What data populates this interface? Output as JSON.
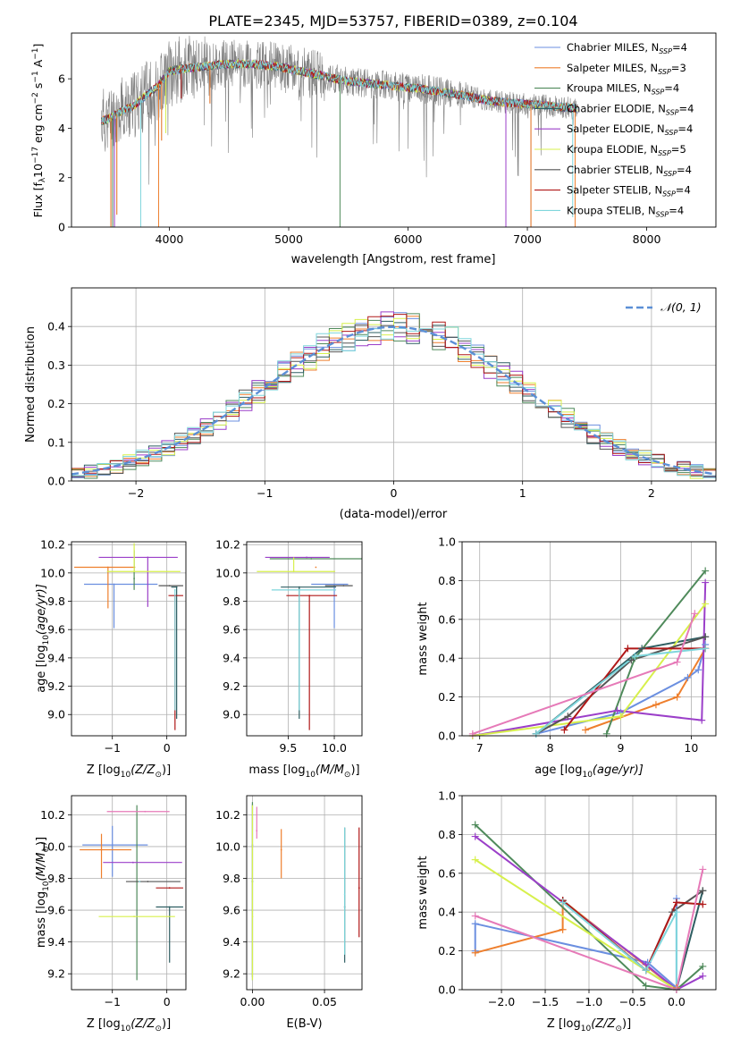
{
  "figure": {
    "title": "PLATE=2345, MJD=53757, FIBERID=0389, z=0.104"
  },
  "colors": {
    "spectrum": "#808080",
    "gaussian": "#5b8fd6",
    "grid": "#b0b0b0"
  },
  "models": [
    {
      "name": "Chabrier MILES",
      "nssp": "4",
      "color": "#6b8fe0"
    },
    {
      "name": "Salpeter MILES",
      "nssp": "3",
      "color": "#ee7f2d"
    },
    {
      "name": "Kroupa MILES",
      "nssp": "4",
      "color": "#4f8a5b"
    },
    {
      "name": "Chabrier ELODIE",
      "nssp": "4",
      "color": "#2e5e62"
    },
    {
      "name": "Salpeter ELODIE",
      "nssp": "4",
      "color": "#9b3fc9"
    },
    {
      "name": "Kroupa ELODIE",
      "nssp": "5",
      "color": "#d7f04c"
    },
    {
      "name": "Chabrier STELIB",
      "nssp": "4",
      "color": "#555555"
    },
    {
      "name": "Salpeter STELIB",
      "nssp": "4",
      "color": "#b01818"
    },
    {
      "name": "Kroupa STELIB",
      "nssp": "4",
      "color": "#7fd6dc"
    }
  ],
  "chart_data": [
    {
      "id": "spectrum",
      "type": "line",
      "xlabel": "wavelength [Angstrom, rest frame]",
      "ylabel_main": "Flux [f",
      "ylabel_sub": "λ",
      "ylabel_mid": "10",
      "ylabel_sup1": "−17",
      "ylabel_mid2": " erg cm",
      "ylabel_sup2": "−2",
      "ylabel_mid3": " s",
      "ylabel_sup3": "−1",
      "ylabel_mid4": " A",
      "ylabel_sup4": "−1",
      "ylabel_end": "]",
      "xlim": [
        3180,
        8580
      ],
      "ylim": [
        0,
        7.85
      ],
      "xticks": [
        4000,
        5000,
        6000,
        7000,
        8000
      ],
      "yticks": [
        0,
        2,
        4,
        6
      ],
      "legend_position": "upper right",
      "legend_nssp_label": "N",
      "legend_nssp_sub": "SSP",
      "continuum": [
        [
          3430,
          4.3
        ],
        [
          3500,
          4.4
        ],
        [
          3600,
          4.7
        ],
        [
          3700,
          4.9
        ],
        [
          3800,
          5.3
        ],
        [
          3900,
          5.7
        ],
        [
          4000,
          6.3
        ],
        [
          4100,
          6.4
        ],
        [
          4300,
          6.5
        ],
        [
          4500,
          6.6
        ],
        [
          4700,
          6.6
        ],
        [
          4900,
          6.5
        ],
        [
          5100,
          6.3
        ],
        [
          5300,
          6.1
        ],
        [
          5500,
          5.9
        ],
        [
          5700,
          5.8
        ],
        [
          5900,
          5.7
        ],
        [
          6100,
          5.6
        ],
        [
          6300,
          5.45
        ],
        [
          6500,
          5.3
        ],
        [
          6700,
          5.1
        ],
        [
          6900,
          5.0
        ],
        [
          7100,
          4.95
        ],
        [
          7300,
          4.85
        ],
        [
          7420,
          4.8
        ]
      ],
      "dips": [
        [
          3510,
          0
        ],
        [
          3525,
          0
        ],
        [
          3540,
          0
        ],
        [
          3560,
          0.5
        ],
        [
          3760,
          0
        ],
        [
          3910,
          0
        ],
        [
          3935,
          3.5
        ],
        [
          3970,
          3.8
        ],
        [
          4100,
          5.2
        ],
        [
          4340,
          5.0
        ],
        [
          5430,
          0
        ],
        [
          6820,
          0
        ],
        [
          7030,
          0
        ],
        [
          7380,
          0.4
        ],
        [
          7400,
          0
        ]
      ]
    },
    {
      "id": "residual-histogram",
      "type": "step",
      "xlabel": "(data-model)/error",
      "ylabel": "Normed distribution",
      "xlim": [
        -2.5,
        2.5
      ],
      "ylim": [
        0,
        0.5
      ],
      "xticks": [
        -2,
        -1,
        0,
        1,
        2
      ],
      "xtick_labels": [
        "−2",
        "−1",
        "0",
        "1",
        "2"
      ],
      "yticks": [
        0.0,
        0.1,
        0.2,
        0.3,
        0.4
      ],
      "gaussian_label": "𝒩(0, 1)",
      "legend_position": "upper right",
      "bin_width": 0.1,
      "bin_start": -2.5
    },
    {
      "id": "age-vs-metallicity",
      "type": "errorbar",
      "xlabel": "Z [log",
      "xlabel_sub": "10",
      "xlabel_rest": "(Z/Z",
      "xlabel_sun": "⊙",
      "xlabel_end": ")]",
      "ylabel": "age  [log",
      "ylabel_sub": "10",
      "ylabel_rest": "(age/yr)]",
      "xlim": [
        -1.75,
        0.35
      ],
      "ylim": [
        8.85,
        10.22
      ],
      "xticks": [
        -1,
        0
      ],
      "xtick_labels": [
        "−1",
        "0"
      ],
      "yticks": [
        9.0,
        9.2,
        9.4,
        9.6,
        9.8,
        10.0,
        10.2
      ],
      "points": [
        {
          "m": 0,
          "x": -0.97,
          "y": 9.92,
          "xl": 0.55,
          "xh": 0.8,
          "yl": 0.31,
          "yh": 0.0
        },
        {
          "m": 1,
          "x": -1.08,
          "y": 10.04,
          "xl": 0.62,
          "xh": 0.5,
          "yl": 0.29,
          "yh": 0.0
        },
        {
          "m": 2,
          "x": -0.6,
          "y": 9.96,
          "xl": 0.0,
          "xh": 0.0,
          "yl": 0.08,
          "yh": 0.2
        },
        {
          "m": 3,
          "x": 0.18,
          "y": 9.9,
          "xl": 0.1,
          "xh": 0.0,
          "yl": 0.93,
          "yh": 0.0
        },
        {
          "m": 4,
          "x": -0.35,
          "y": 10.11,
          "xl": 0.9,
          "xh": 0.55,
          "yl": 0.35,
          "yh": 0.0
        },
        {
          "m": 5,
          "x": -0.6,
          "y": 10.01,
          "xl": 0.5,
          "xh": 0.85,
          "yl": 0.0,
          "yh": 0.2
        },
        {
          "m": 6,
          "x": 0.05,
          "y": 9.91,
          "xl": 0.2,
          "xh": 0.25,
          "yl": 0.0,
          "yh": 0.0
        },
        {
          "m": 7,
          "x": 0.15,
          "y": 9.84,
          "xl": 0.12,
          "xh": 0.15,
          "yl": 0.95,
          "yh": 0.0
        },
        {
          "m": 8,
          "x": 0.15,
          "y": 9.88,
          "xl": 0.0,
          "xh": 0.0,
          "yl": 0.85,
          "yh": 0.0
        }
      ]
    },
    {
      "id": "age-vs-mass",
      "type": "errorbar",
      "xlabel": "mass [log",
      "xlabel_sub": "10",
      "xlabel_rest": "(M/M",
      "xlabel_sun": "⊙",
      "xlabel_end": ")]",
      "xlim": [
        9.05,
        10.3
      ],
      "ylim": [
        8.85,
        10.22
      ],
      "xticks": [
        9.5,
        10.0
      ],
      "xtick_labels": [
        "9.5",
        "10.0"
      ],
      "yticks": [
        9.0,
        9.2,
        9.4,
        9.6,
        9.8,
        10.0,
        10.2
      ],
      "points": [
        {
          "m": 0,
          "x": 10.0,
          "y": 9.92,
          "xl": 0.25,
          "xh": 0.15,
          "yl": 0.31,
          "yh": 0.0
        },
        {
          "m": 1,
          "x": 9.8,
          "y": 10.04,
          "xl": 0.0,
          "xh": 0.0,
          "yl": 0.0,
          "yh": 0.0
        },
        {
          "m": 2,
          "x": 9.75,
          "y": 10.1,
          "xl": 0.45,
          "xh": 0.55,
          "yl": 0.0,
          "yh": 0.0
        },
        {
          "m": 3,
          "x": 9.62,
          "y": 9.9,
          "xl": 0.2,
          "xh": 0.4,
          "yl": 0.93,
          "yh": 0.0
        },
        {
          "m": 4,
          "x": 9.7,
          "y": 10.11,
          "xl": 0.45,
          "xh": 0.25,
          "yl": 0.0,
          "yh": 0.0
        },
        {
          "m": 5,
          "x": 9.56,
          "y": 10.01,
          "xl": 0.4,
          "xh": 0.45,
          "yl": 0.0,
          "yh": 0.1
        },
        {
          "m": 6,
          "x": 10.1,
          "y": 9.91,
          "xl": 0.2,
          "xh": 0.1,
          "yl": 0.0,
          "yh": 0.0
        },
        {
          "m": 7,
          "x": 9.73,
          "y": 9.84,
          "xl": 0.25,
          "xh": 0.3,
          "yl": 0.95,
          "yh": 0.0
        },
        {
          "m": 8,
          "x": 9.62,
          "y": 9.88,
          "xl": 0.3,
          "xh": 0.4,
          "yl": 0.85,
          "yh": 0.0
        }
      ]
    },
    {
      "id": "mass-weight-vs-age",
      "type": "line",
      "xlabel": "age  [log",
      "xlabel_sub": "10",
      "xlabel_rest": "(age/yr)]",
      "ylabel": "mass weight",
      "xlim": [
        6.75,
        10.35
      ],
      "ylim": [
        0,
        1.0
      ],
      "xticks": [
        7,
        8,
        9,
        10
      ],
      "xtick_labels": [
        "7",
        "8",
        "9",
        "10"
      ],
      "yticks": [
        0.0,
        0.2,
        0.4,
        0.6,
        0.8,
        1.0
      ],
      "series": [
        {
          "m": 0,
          "x": [
            7.8,
            9.0,
            9.95,
            10.1,
            10.2
          ],
          "y": [
            0.01,
            0.12,
            0.3,
            0.34,
            0.47
          ]
        },
        {
          "m": 1,
          "x": [
            8.5,
            9.5,
            9.8,
            10.2
          ],
          "y": [
            0.03,
            0.16,
            0.2,
            0.45
          ]
        },
        {
          "m": 2,
          "x": [
            8.8,
            9.2,
            10.2
          ],
          "y": [
            0.01,
            0.4,
            0.85
          ]
        },
        {
          "m": 3,
          "x": [
            7.8,
            9.3,
            10.2
          ],
          "y": [
            0.01,
            0.45,
            0.51
          ]
        },
        {
          "m": 4,
          "x": [
            6.9,
            8.95,
            10.15,
            10.2
          ],
          "y": [
            0.0,
            0.13,
            0.08,
            0.79
          ]
        },
        {
          "m": 5,
          "x": [
            6.9,
            9.0,
            10.2
          ],
          "y": [
            0.0,
            0.1,
            0.68
          ]
        },
        {
          "m": 6,
          "x": [
            7.8,
            8.25,
            9.15,
            10.2
          ],
          "y": [
            0.01,
            0.1,
            0.39,
            0.51
          ]
        },
        {
          "m": 7,
          "x": [
            8.2,
            9.1,
            10.2
          ],
          "y": [
            0.03,
            0.45,
            0.45
          ]
        },
        {
          "m": 8,
          "x": [
            7.8,
            9.2,
            10.2
          ],
          "y": [
            0.01,
            0.41,
            0.45
          ]
        },
        {
          "m": 9,
          "x": [
            6.9,
            9.8,
            10.05
          ],
          "y": [
            0.01,
            0.38,
            0.63
          ],
          "color": "#e67ab8"
        }
      ]
    },
    {
      "id": "mass-vs-metallicity",
      "type": "errorbar",
      "xlabel": "Z [log",
      "xlabel_sub": "10",
      "xlabel_rest": "(Z/Z",
      "xlabel_sun": "⊙",
      "xlabel_end": ")]",
      "ylabel": "mass [log",
      "ylabel_sub": "10",
      "ylabel_rest": "(M/M",
      "ylabel_sun": "⊙",
      "ylabel_end": ")]",
      "xlim": [
        -1.75,
        0.35
      ],
      "ylim": [
        9.1,
        10.32
      ],
      "xticks": [
        -1,
        0
      ],
      "xtick_labels": [
        "−1",
        "0"
      ],
      "yticks": [
        9.2,
        9.4,
        9.6,
        9.8,
        10.0,
        10.2
      ],
      "points": [
        {
          "m": 0,
          "x": -1.0,
          "y": 10.01,
          "xl": 0.55,
          "xh": 0.65,
          "yl": 0.2,
          "yh": 0.12
        },
        {
          "m": 1,
          "x": -1.2,
          "y": 9.98,
          "xl": 0.4,
          "xh": 0.55,
          "yl": 0.18,
          "yh": 0.1
        },
        {
          "m": 2,
          "x": -0.55,
          "y": 9.78,
          "xl": 0.0,
          "xh": 0.0,
          "yl": 0.62,
          "yh": 0.48
        },
        {
          "m": 3,
          "x": 0.05,
          "y": 9.62,
          "xl": 0.25,
          "xh": 0.25,
          "yl": 0.35,
          "yh": 0.0
        },
        {
          "m": 4,
          "x": -0.62,
          "y": 9.9,
          "xl": 0.55,
          "xh": 0.9,
          "yl": 0.0,
          "yh": 0.0
        },
        {
          "m": 5,
          "x": -0.6,
          "y": 9.56,
          "xl": 0.65,
          "xh": 0.75,
          "yl": 0.0,
          "yh": 0.0
        },
        {
          "m": 6,
          "x": -0.35,
          "y": 9.78,
          "xl": 0.4,
          "xh": 0.6,
          "yl": 0.0,
          "yh": 0.0
        },
        {
          "m": 7,
          "x": 0.05,
          "y": 9.74,
          "xl": 0.25,
          "xh": 0.25,
          "yl": 0.0,
          "yh": 0.0
        },
        {
          "m": 8,
          "x": -0.5,
          "y": 9.78,
          "xl": 0.0,
          "xh": 0.0,
          "yl": 0.0,
          "yh": 0.0
        },
        {
          "m": 9,
          "x": -0.4,
          "y": 10.22,
          "xl": 0.7,
          "xh": 0.45,
          "yl": 0.0,
          "yh": 0.0,
          "color": "#e67ab8"
        }
      ]
    },
    {
      "id": "mass-vs-extinction",
      "type": "errorbar",
      "xlabel": "E(B-V)",
      "xlim": [
        -0.004,
        0.076
      ],
      "ylim": [
        9.1,
        10.32
      ],
      "xticks": [
        0.0,
        0.05
      ],
      "xtick_labels": [
        "0.00",
        "0.05"
      ],
      "yticks": [
        9.2,
        9.4,
        9.6,
        9.8,
        10.0,
        10.2
      ],
      "points": [
        {
          "m": 0,
          "x": 0.0,
          "y": 10.01,
          "xl": 0,
          "xh": 0,
          "yl": 0.85,
          "yh": 0.26
        },
        {
          "m": 1,
          "x": 0.02,
          "y": 9.98,
          "xl": 0,
          "xh": 0,
          "yl": 0.18,
          "yh": 0.13
        },
        {
          "m": 2,
          "x": 0.0,
          "y": 9.78,
          "xl": 0,
          "xh": 0,
          "yl": 0.6,
          "yh": 0.5
        },
        {
          "m": 3,
          "x": 0.064,
          "y": 9.62,
          "xl": 0,
          "xh": 0,
          "yl": 0.35,
          "yh": 0.5
        },
        {
          "m": 5,
          "x": 0.0,
          "y": 9.56,
          "xl": 0,
          "xh": 0,
          "yl": 0.4,
          "yh": 0.7
        },
        {
          "m": 7,
          "x": 0.074,
          "y": 9.74,
          "xl": 0,
          "xh": 0,
          "yl": 0.31,
          "yh": 0.38
        },
        {
          "m": 8,
          "x": 0.064,
          "y": 9.7,
          "xl": 0,
          "xh": 0,
          "yl": 0.38,
          "yh": 0.42
        },
        {
          "m": 9,
          "x": 0.003,
          "y": 10.1,
          "xl": 0,
          "xh": 0,
          "yl": 0.05,
          "yh": 0.15,
          "color": "#e67ab8"
        }
      ]
    },
    {
      "id": "mass-weight-vs-metallicity",
      "type": "line",
      "xlabel": "Z [log",
      "xlabel_sub": "10",
      "xlabel_rest": "(Z/Z",
      "xlabel_sun": "⊙",
      "xlabel_end": ")]",
      "ylabel": "mass weight",
      "xlim": [
        -2.45,
        0.45
      ],
      "ylim": [
        0,
        1.0
      ],
      "xticks": [
        -2.0,
        -1.5,
        -1.0,
        -0.5,
        0.0
      ],
      "xtick_labels": [
        "−2.0",
        "−1.5",
        "−1.0",
        "−0.5",
        "0.0"
      ],
      "yticks": [
        0.0,
        0.2,
        0.4,
        0.6,
        0.8,
        1.0
      ],
      "series": [
        {
          "m": 0,
          "x": [
            -2.3,
            -2.3,
            -0.33,
            0.0,
            0.0
          ],
          "y": [
            0.2,
            0.34,
            0.14,
            0.01,
            0.47
          ]
        },
        {
          "m": 1,
          "x": [
            -2.3,
            -1.3,
            -1.3,
            0.0,
            0.0
          ],
          "y": [
            0.19,
            0.31,
            0.46,
            0.0,
            0.01
          ]
        },
        {
          "m": 2,
          "x": [
            -2.3,
            -0.35,
            0.0,
            0.3
          ],
          "y": [
            0.85,
            0.02,
            0.0,
            0.12
          ]
        },
        {
          "m": 3,
          "x": [
            -1.3,
            -0.35,
            0.0,
            0.3
          ],
          "y": [
            0.46,
            0.1,
            0.0,
            0.51
          ]
        },
        {
          "m": 4,
          "x": [
            -2.3,
            -0.35,
            0.0,
            0.3
          ],
          "y": [
            0.79,
            0.13,
            0.0,
            0.07
          ]
        },
        {
          "m": 5,
          "x": [
            -2.3,
            -0.35,
            0.0
          ],
          "y": [
            0.67,
            0.1,
            0.0
          ]
        },
        {
          "m": 6,
          "x": [
            -1.3,
            -0.35,
            -0.05,
            0.3
          ],
          "y": [
            0.46,
            0.1,
            0.4,
            0.51
          ]
        },
        {
          "m": 7,
          "x": [
            -1.3,
            -0.35,
            0.0,
            0.3
          ],
          "y": [
            0.46,
            0.1,
            0.45,
            0.44
          ]
        },
        {
          "m": 8,
          "x": [
            -1.3,
            -0.35,
            0.0,
            0.0
          ],
          "y": [
            0.45,
            0.1,
            0.4,
            0.0
          ]
        },
        {
          "m": 9,
          "x": [
            -2.3,
            0.0,
            0.3
          ],
          "y": [
            0.38,
            0.0,
            0.62
          ],
          "color": "#e67ab8"
        }
      ]
    }
  ]
}
